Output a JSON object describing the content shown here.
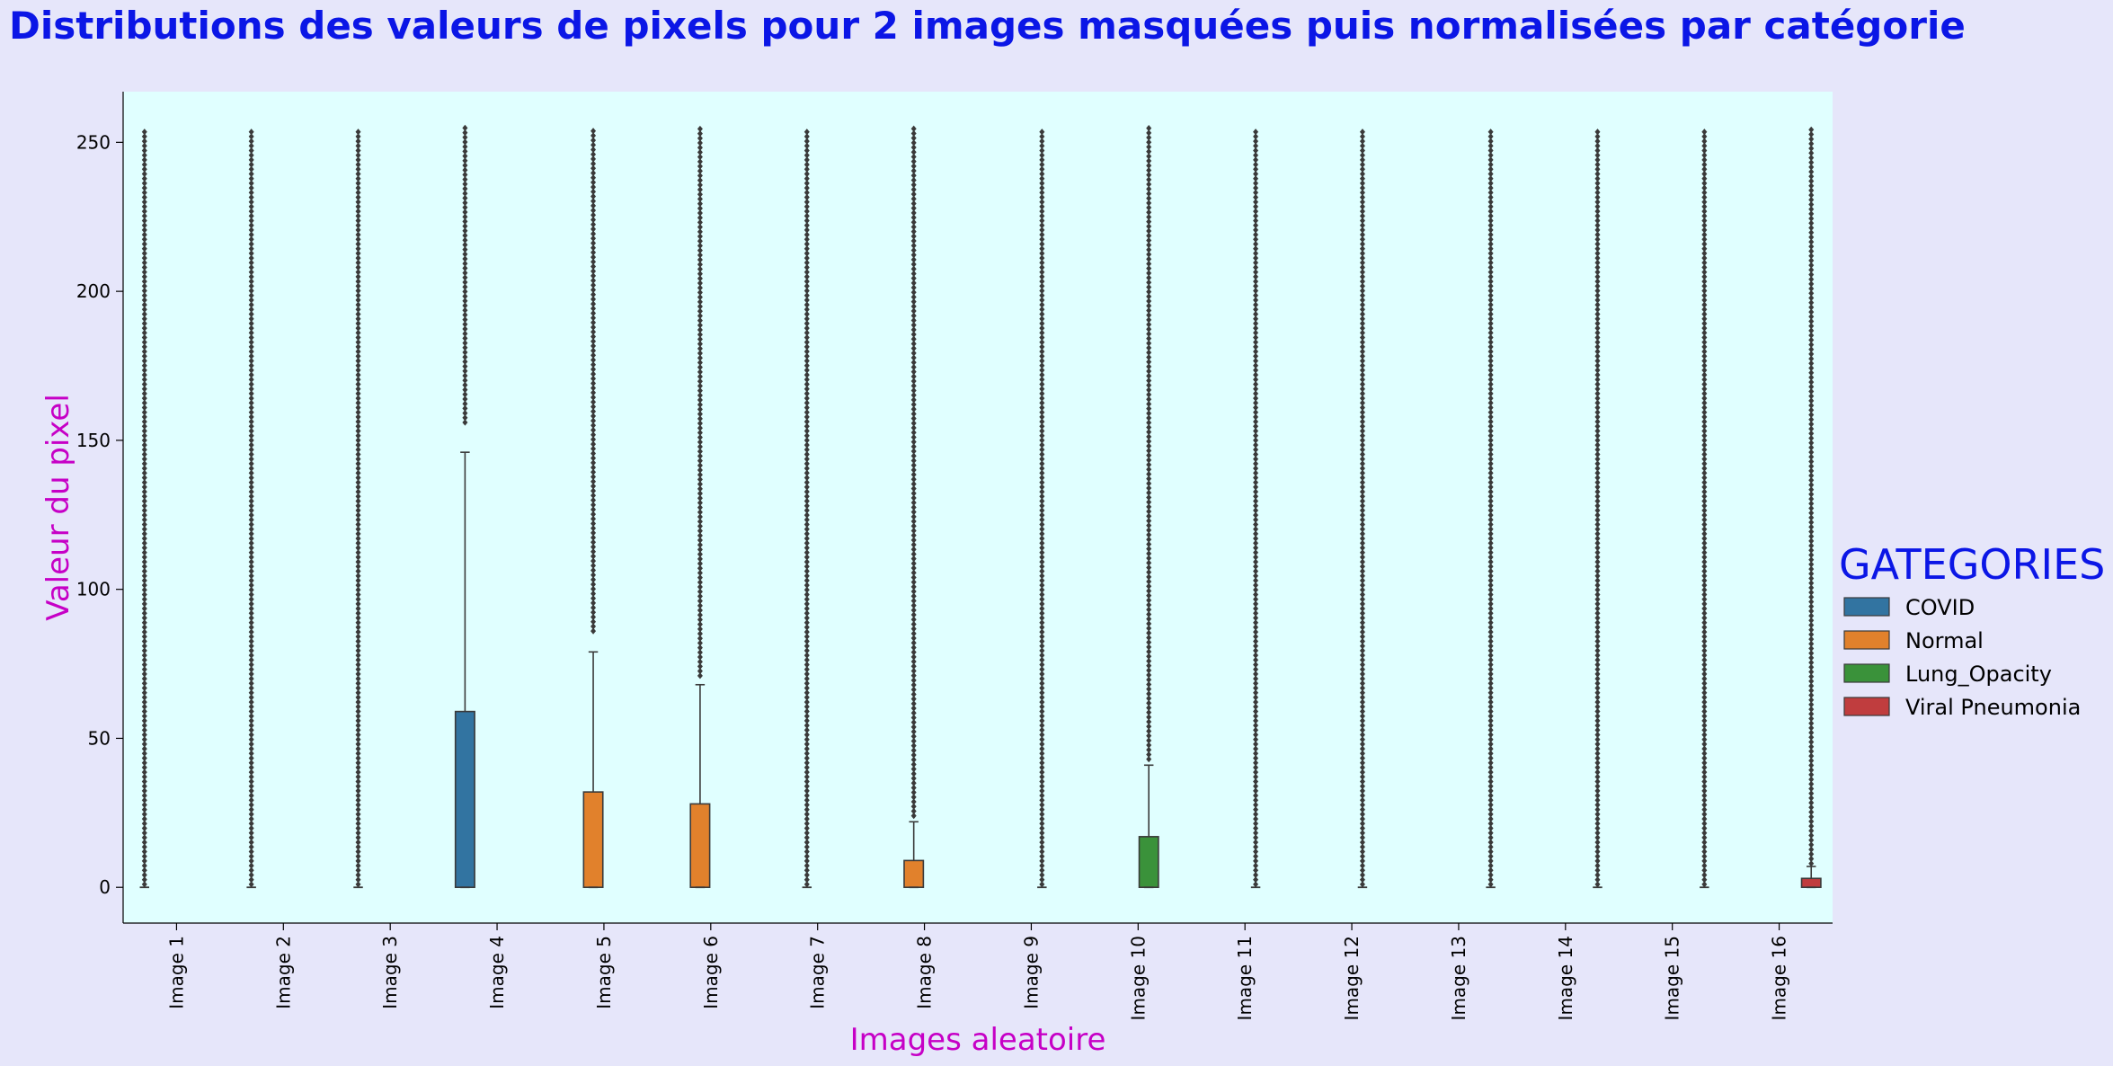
{
  "chart_data": {
    "type": "box",
    "title": "Distributions des valeurs de pixels pour 2 images masquées puis normalisées par catégorie",
    "xlabel": "Images aleatoire",
    "ylabel": "Valeur du pixel",
    "ylim": [
      -12,
      267
    ],
    "yticks": [
      0,
      50,
      100,
      150,
      200,
      250
    ],
    "grid": false,
    "legend": {
      "title": "GATEGORIES",
      "placement": "right",
      "entries": [
        {
          "name": "COVID",
          "color": "#3274a1"
        },
        {
          "name": "Normal",
          "color": "#e1812c"
        },
        {
          "name": "Lung_Opacity",
          "color": "#3a923a"
        },
        {
          "name": "Viral Pneumonia",
          "color": "#c03d3e"
        }
      ]
    },
    "plot_background": "#e0ffff",
    "figure_background": "#e6e6fa",
    "categories": [
      "Image 1",
      "Image 2",
      "Image 3",
      "Image 4",
      "Image 5",
      "Image 6",
      "Image 7",
      "Image 8",
      "Image 9",
      "Image 10",
      "Image 11",
      "Image 12",
      "Image 13",
      "Image 14",
      "Image 15",
      "Image 16"
    ],
    "boxes": [
      {
        "category": "Image 1",
        "hue": "COVID",
        "q1": 0,
        "median": 0,
        "q3": 0,
        "whisker_low": 0,
        "whisker_high": 0,
        "outliers_range": [
          1,
          255
        ]
      },
      {
        "category": "Image 2",
        "hue": "COVID",
        "q1": 0,
        "median": 0,
        "q3": 0,
        "whisker_low": 0,
        "whisker_high": 0,
        "outliers_range": [
          1,
          255
        ]
      },
      {
        "category": "Image 3",
        "hue": "COVID",
        "q1": 0,
        "median": 0,
        "q3": 0,
        "whisker_low": 0,
        "whisker_high": 0,
        "outliers_range": [
          1,
          255
        ]
      },
      {
        "category": "Image 4",
        "hue": "COVID",
        "q1": 0,
        "median": 0,
        "q3": 59,
        "whisker_low": 0,
        "whisker_high": 146,
        "outliers_range": [
          156,
          255
        ]
      },
      {
        "category": "Image 5",
        "hue": "Normal",
        "q1": 0,
        "median": 0,
        "q3": 32,
        "whisker_low": 0,
        "whisker_high": 79,
        "outliers_range": [
          86,
          255
        ]
      },
      {
        "category": "Image 6",
        "hue": "Normal",
        "q1": 0,
        "median": 0,
        "q3": 28,
        "whisker_low": 0,
        "whisker_high": 68,
        "outliers_range": [
          71,
          255
        ]
      },
      {
        "category": "Image 7",
        "hue": "Normal",
        "q1": 0,
        "median": 0,
        "q3": 0,
        "whisker_low": 0,
        "whisker_high": 0,
        "outliers_range": [
          1,
          255
        ]
      },
      {
        "category": "Image 8",
        "hue": "Normal",
        "q1": 0,
        "median": 0,
        "q3": 9,
        "whisker_low": 0,
        "whisker_high": 22,
        "outliers_range": [
          24,
          255
        ]
      },
      {
        "category": "Image 9",
        "hue": "Lung_Opacity",
        "q1": 0,
        "median": 0,
        "q3": 0,
        "whisker_low": 0,
        "whisker_high": 0,
        "outliers_range": [
          1,
          255
        ]
      },
      {
        "category": "Image 10",
        "hue": "Lung_Opacity",
        "q1": 0,
        "median": 0,
        "q3": 17,
        "whisker_low": 0,
        "whisker_high": 41,
        "outliers_range": [
          43,
          255
        ]
      },
      {
        "category": "Image 11",
        "hue": "Lung_Opacity",
        "q1": 0,
        "median": 0,
        "q3": 0,
        "whisker_low": 0,
        "whisker_high": 0,
        "outliers_range": [
          1,
          255
        ]
      },
      {
        "category": "Image 12",
        "hue": "Lung_Opacity",
        "q1": 0,
        "median": 0,
        "q3": 0,
        "whisker_low": 0,
        "whisker_high": 0,
        "outliers_range": [
          1,
          255
        ]
      },
      {
        "category": "Image 13",
        "hue": "Viral Pneumonia",
        "q1": 0,
        "median": 0,
        "q3": 0,
        "whisker_low": 0,
        "whisker_high": 0,
        "outliers_range": [
          1,
          255
        ]
      },
      {
        "category": "Image 14",
        "hue": "Viral Pneumonia",
        "q1": 0,
        "median": 0,
        "q3": 0,
        "whisker_low": 0,
        "whisker_high": 0,
        "outliers_range": [
          1,
          255
        ]
      },
      {
        "category": "Image 15",
        "hue": "Viral Pneumonia",
        "q1": 0,
        "median": 0,
        "q3": 0,
        "whisker_low": 0,
        "whisker_high": 0,
        "outliers_range": [
          1,
          255
        ]
      },
      {
        "category": "Image 16",
        "hue": "Viral Pneumonia",
        "q1": 0,
        "median": 0,
        "q3": 3,
        "whisker_low": 0,
        "whisker_high": 7,
        "outliers_range": [
          8,
          255
        ]
      }
    ]
  }
}
